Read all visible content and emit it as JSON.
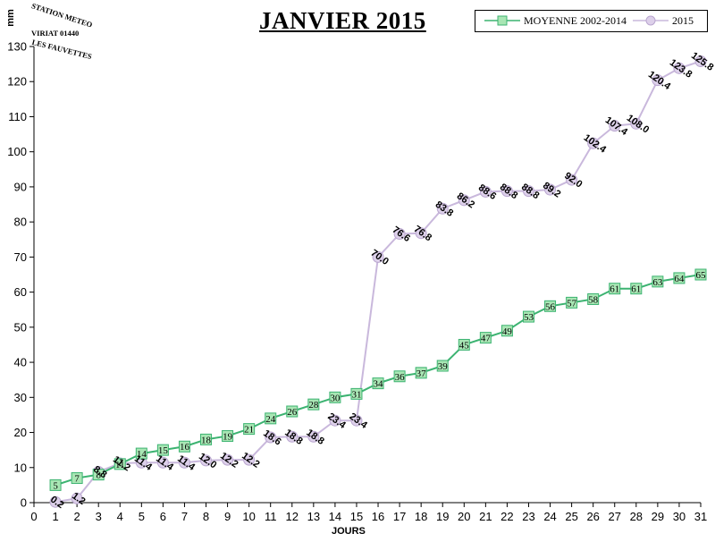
{
  "chart_data": {
    "type": "line",
    "title": "JANVIER 2015",
    "ylabel": "mm",
    "xlabel": "JOURS",
    "xlim": [
      0,
      31
    ],
    "ylim": [
      0,
      130
    ],
    "xticks": [
      "0",
      "1",
      "2",
      "3",
      "4",
      "5",
      "6",
      "7",
      "8",
      "9",
      "10",
      "11",
      "12",
      "13",
      "14",
      "15",
      "16",
      "17",
      "18",
      "19",
      "20",
      "21",
      "22",
      "23",
      "24",
      "25",
      "26",
      "27",
      "28",
      "29",
      "30",
      "31"
    ],
    "yticks": [
      "0",
      "10",
      "20",
      "30",
      "40",
      "50",
      "60",
      "70",
      "80",
      "90",
      "100",
      "110",
      "120",
      "130"
    ],
    "grid": false,
    "legend_position": "top-right",
    "logo": {
      "line1": "STATION METEO",
      "line2": "VIRIAT 01440",
      "line3": "LES FAUVETTES"
    },
    "series": [
      {
        "name": "MOYENNE 2002-2014",
        "marker": "square",
        "color": "#3cb371",
        "fill": "#a8e6b4",
        "x": [
          1,
          2,
          3,
          4,
          5,
          6,
          7,
          8,
          9,
          10,
          11,
          12,
          13,
          14,
          15,
          16,
          17,
          18,
          19,
          20,
          21,
          22,
          23,
          24,
          25,
          26,
          27,
          28,
          29,
          30,
          31
        ],
        "values": [
          5,
          7,
          8,
          11,
          14,
          15,
          16,
          18,
          19,
          21,
          24,
          26,
          28,
          30,
          31,
          34,
          36,
          37,
          39,
          45,
          47,
          49,
          53,
          56,
          57,
          58,
          61,
          61,
          63,
          64,
          65
        ],
        "labels": [
          "5",
          "7",
          "8",
          "11",
          "14",
          "15",
          "16",
          "18",
          "19",
          "21",
          "24",
          "26",
          "28",
          "30",
          "31",
          "34",
          "36",
          "37",
          "39",
          "45",
          "47",
          "49",
          "53",
          "56",
          "57",
          "58",
          "61",
          "61",
          "63",
          "64",
          "65"
        ]
      },
      {
        "name": "2015",
        "marker": "circle",
        "color": "#c9b8dc",
        "fill": "#ddd0ea",
        "x": [
          1,
          2,
          3,
          4,
          5,
          6,
          7,
          8,
          9,
          10,
          11,
          12,
          13,
          14,
          15,
          16,
          17,
          18,
          19,
          20,
          21,
          22,
          23,
          24,
          25,
          26,
          27,
          28,
          29,
          30,
          31
        ],
        "values": [
          0.2,
          1.2,
          8.8,
          11.2,
          11.4,
          11.4,
          11.4,
          12.0,
          12.2,
          12.2,
          18.6,
          18.8,
          18.8,
          23.4,
          23.4,
          70.0,
          76.6,
          76.8,
          83.8,
          86.2,
          88.6,
          88.8,
          88.8,
          89.2,
          92.0,
          102.4,
          107.4,
          108.0,
          120.4,
          123.8,
          125.8
        ],
        "labels": [
          "0.2",
          "1.2",
          "8.8",
          "11.2",
          "11.4",
          "11.4",
          "11.4",
          "12.0",
          "12.2",
          "12.2",
          "18.6",
          "18.8",
          "18.8",
          "23.4",
          "23.4",
          "70.0",
          "76.6",
          "76.8",
          "83.8",
          "86.2",
          "88.6",
          "88.8",
          "88.8",
          "89.2",
          "92.0",
          "102.4",
          "107.4",
          "108.0",
          "120.4",
          "123.8",
          "125.8"
        ]
      }
    ]
  }
}
